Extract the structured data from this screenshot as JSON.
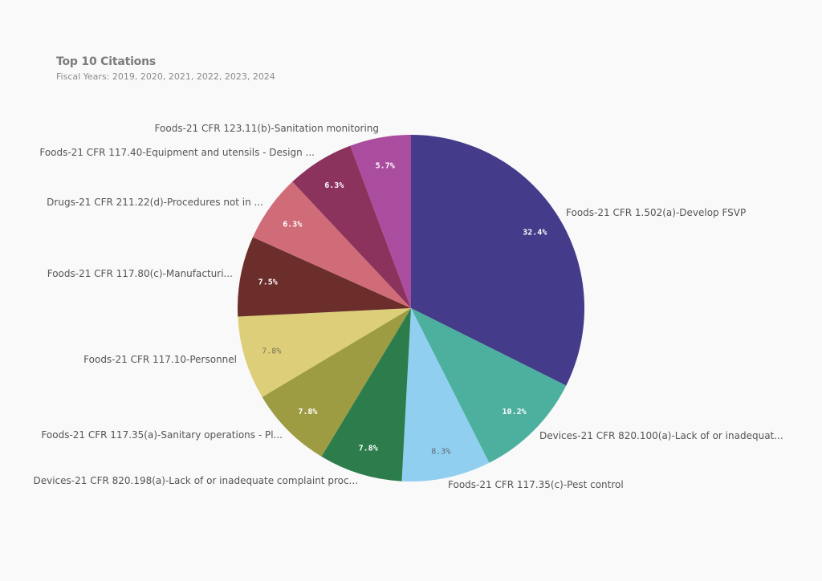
{
  "header": {
    "title": "Top 10 Citations",
    "subtitle": "Fiscal Years: 2019, 2020, 2021, 2022, 2023, 2024"
  },
  "chart_data": {
    "type": "pie",
    "title": "Top 10 Citations",
    "subtitle": "Fiscal Years: 2019, 2020, 2021, 2022, 2023, 2024",
    "start": "12 o'clock",
    "direction": "clockwise",
    "slices": [
      {
        "label": "Foods-21 CFR 1.502(a)-Develop FSVP",
        "value": 32.4,
        "value_label": "32.4%",
        "color": "#443c8a",
        "value_color": "#ffffff"
      },
      {
        "label": "Devices-21 CFR 820.100(a)-Lack of or inadequat...",
        "value": 10.2,
        "value_label": "10.2%",
        "color": "#4db09f",
        "value_color": "#ffffff"
      },
      {
        "label": "Foods-21 CFR 117.35(c)-Pest control",
        "value": 8.3,
        "value_label": "8.3%",
        "color": "#91cff0",
        "value_color": "#5f6b72"
      },
      {
        "label": "Devices-21 CFR 820.198(a)-Lack of or inadequate complaint proc...",
        "value": 7.8,
        "value_label": "7.8%",
        "color": "#2d7d4c",
        "value_color": "#ffffff"
      },
      {
        "label": "Foods-21 CFR 117.35(a)-Sanitary operations - Pl...",
        "value": 7.8,
        "value_label": "7.8%",
        "color": "#9e9c43",
        "value_color": "#ffffff"
      },
      {
        "label": "Foods-21 CFR 117.10-Personnel",
        "value": 7.8,
        "value_label": "7.8%",
        "color": "#ddcf7a",
        "value_color": "#7a7350"
      },
      {
        "label": "Foods-21 CFR 117.80(c)-Manufacturi...",
        "value": 7.5,
        "value_label": "7.5%",
        "color": "#6b2e2b",
        "value_color": "#ffffff"
      },
      {
        "label": "Drugs-21 CFR 211.22(d)-Procedures not  in ...",
        "value": 6.3,
        "value_label": "6.3%",
        "color": "#d06c78",
        "value_color": "#ffffff"
      },
      {
        "label": "Foods-21 CFR 117.40-Equipment and utensils - Design ...",
        "value": 6.3,
        "value_label": "6.3%",
        "color": "#8b325d",
        "value_color": "#ffffff"
      },
      {
        "label": "Foods-21 CFR 123.11(b)-Sanitation monitoring",
        "value": 5.7,
        "value_label": "5.7%",
        "color": "#ab4d9e",
        "value_color": "#ffffff"
      }
    ]
  }
}
